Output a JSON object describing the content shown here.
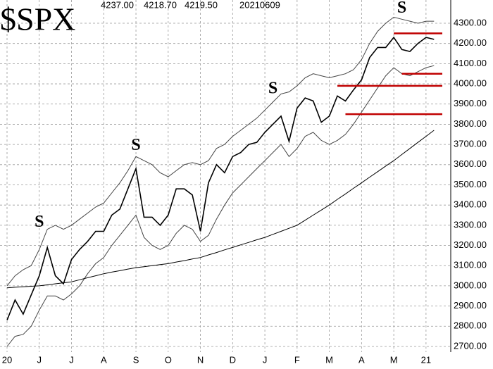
{
  "chart_data": {
    "type": "line",
    "title": "$SPX",
    "ohlc_labels": [
      "4237.00",
      "4218.70",
      "4219.50"
    ],
    "date_label": "20210609",
    "categories": [
      "20",
      null,
      null,
      null,
      "J",
      null,
      null,
      null,
      "J",
      null,
      null,
      null,
      "A",
      null,
      null,
      null,
      "S",
      null,
      null,
      null,
      "O",
      null,
      null,
      null,
      "N",
      null,
      null,
      null,
      "D",
      null,
      null,
      null,
      "J",
      null,
      null,
      null,
      "F",
      null,
      null,
      null,
      "M",
      null,
      null,
      null,
      "A",
      null,
      null,
      null,
      "M",
      null,
      null,
      null,
      "21",
      null
    ],
    "series": [
      {
        "color": "#000000",
        "width": 1.6,
        "values": [
          2830,
          2930,
          2860,
          2955,
          3050,
          3190,
          3050,
          3010,
          3130,
          3180,
          3220,
          3270,
          3270,
          3350,
          3380,
          3480,
          3580,
          3340,
          3340,
          3300,
          3350,
          3480,
          3480,
          3450,
          3270,
          3510,
          3600,
          3560,
          3640,
          3660,
          3700,
          3710,
          3760,
          3800,
          3840,
          3715,
          3880,
          3930,
          3915,
          3810,
          3840,
          3940,
          3915,
          3970,
          4020,
          4130,
          4180,
          4180,
          4230,
          4170,
          4160,
          4200,
          4230,
          4220
        ]
      },
      {
        "color": "#444444",
        "width": 1,
        "values": [
          3000,
          3050,
          3080,
          3100,
          3180,
          3280,
          3300,
          3280,
          3300,
          3330,
          3360,
          3390,
          3410,
          3460,
          3510,
          3570,
          3640,
          3620,
          3600,
          3560,
          3540,
          3570,
          3600,
          3610,
          3600,
          3620,
          3680,
          3700,
          3740,
          3770,
          3800,
          3830,
          3870,
          3910,
          3950,
          3960,
          3990,
          4030,
          4050,
          4040,
          4030,
          4040,
          4050,
          4070,
          4120,
          4200,
          4260,
          4300,
          4330,
          4320,
          4310,
          4300,
          4310,
          4310
        ]
      },
      {
        "color": "#444444",
        "width": 1,
        "values": [
          2700,
          2750,
          2760,
          2800,
          2880,
          2950,
          2950,
          2930,
          2960,
          3000,
          3060,
          3110,
          3140,
          3200,
          3250,
          3300,
          3350,
          3240,
          3200,
          3180,
          3200,
          3260,
          3300,
          3280,
          3220,
          3250,
          3330,
          3400,
          3460,
          3500,
          3540,
          3580,
          3620,
          3660,
          3700,
          3640,
          3680,
          3740,
          3760,
          3720,
          3700,
          3720,
          3750,
          3800,
          3860,
          3920,
          3980,
          4040,
          4080,
          4050,
          4040,
          4060,
          4080,
          4090
        ]
      },
      {
        "color": "#000000",
        "width": 1,
        "values": [
          2990,
          2993,
          2995,
          2998,
          3000,
          3005,
          3010,
          3015,
          3020,
          3030,
          3040,
          3050,
          3060,
          3068,
          3075,
          3083,
          3090,
          3095,
          3100,
          3105,
          3110,
          3118,
          3125,
          3133,
          3140,
          3153,
          3165,
          3178,
          3190,
          3203,
          3215,
          3228,
          3240,
          3255,
          3270,
          3285,
          3300,
          3325,
          3350,
          3375,
          3400,
          3428,
          3455,
          3483,
          3510,
          3538,
          3565,
          3593,
          3620,
          3650,
          3680,
          3710,
          3740,
          3770
        ]
      }
    ],
    "hlines": [
      {
        "value": 4250,
        "start_index": 48,
        "color": "#c00000"
      },
      {
        "value": 4050,
        "start_index": 49,
        "color": "#c00000"
      },
      {
        "value": 3990,
        "start_index": 41,
        "color": "#c00000"
      },
      {
        "value": 3850,
        "start_index": 42,
        "color": "#c00000"
      }
    ],
    "annotations": [
      {
        "text": "S",
        "x_index": 4,
        "y": 3270,
        "color": "#1f78c8"
      },
      {
        "text": "S",
        "x_index": 16,
        "y": 3650,
        "color": "#c00000"
      },
      {
        "text": "S",
        "x_index": 33,
        "y": 3930,
        "color": "#c00000"
      },
      {
        "text": "S",
        "x_index": 49,
        "y": 4330,
        "color": "#c00000"
      }
    ],
    "ylim": [
      2672,
      4415
    ],
    "yticks": [
      {
        "value": 2700,
        "label": "2700.00"
      },
      {
        "value": 2800,
        "label": "2800.00"
      },
      {
        "value": 2900,
        "label": "2900.00"
      },
      {
        "value": 3000,
        "label": "3000.00"
      },
      {
        "value": 3100,
        "label": "3100.00"
      },
      {
        "value": 3200,
        "label": "3200.00"
      },
      {
        "value": 3300,
        "label": "3300.00"
      },
      {
        "value": 3400,
        "label": "3400.00"
      },
      {
        "value": 3500,
        "label": "3500.00"
      },
      {
        "value": 3600,
        "label": "3600.00"
      },
      {
        "value": 3700,
        "label": "3700.00"
      },
      {
        "value": 3800,
        "label": "3800.00"
      },
      {
        "value": 3900,
        "label": "3900.00"
      },
      {
        "value": 4000,
        "label": "4000.00"
      },
      {
        "value": 4100,
        "label": "4100.00"
      },
      {
        "value": 4200,
        "label": "4200.00"
      },
      {
        "value": 4300,
        "label": "4300.00"
      }
    ],
    "grid": true
  }
}
